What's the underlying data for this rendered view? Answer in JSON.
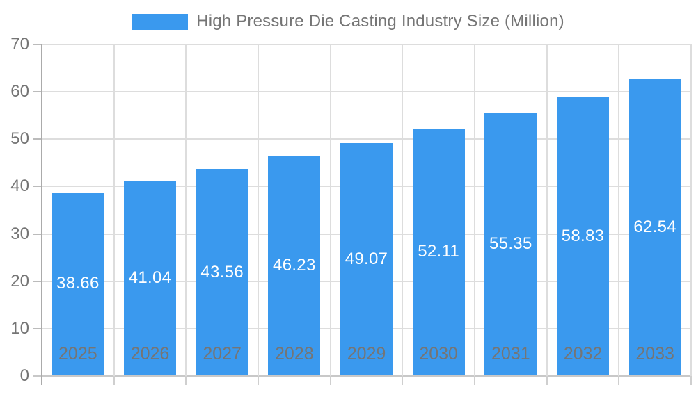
{
  "legend": {
    "label": "High Pressure Die Casting Industry Size (Million)",
    "swatch_color": "#3A99EE"
  },
  "chart_data": {
    "type": "bar",
    "title": "High Pressure Die Casting Industry Size (Million)",
    "categories": [
      "2025",
      "2026",
      "2027",
      "2028",
      "2029",
      "2030",
      "2031",
      "2032",
      "2033"
    ],
    "series": [
      {
        "name": "High Pressure Die Casting Industry Size (Million)",
        "values": [
          38.66,
          41.04,
          43.56,
          46.23,
          49.07,
          52.11,
          55.35,
          58.83,
          62.54
        ]
      }
    ],
    "value_labels": [
      "38.66",
      "41.04",
      "43.56",
      "46.23",
      "49.07",
      "52.11",
      "55.35",
      "58.83",
      "62.54"
    ],
    "xlabel": "",
    "ylabel": "",
    "ylim": [
      0,
      70
    ],
    "y_ticks": [
      0,
      10,
      20,
      30,
      40,
      50,
      60,
      70
    ],
    "grid": true,
    "legend_position": "top",
    "bar_color": "#3A99EE",
    "value_label_color": "#FFFFFF",
    "axis_text_color": "#757575"
  }
}
